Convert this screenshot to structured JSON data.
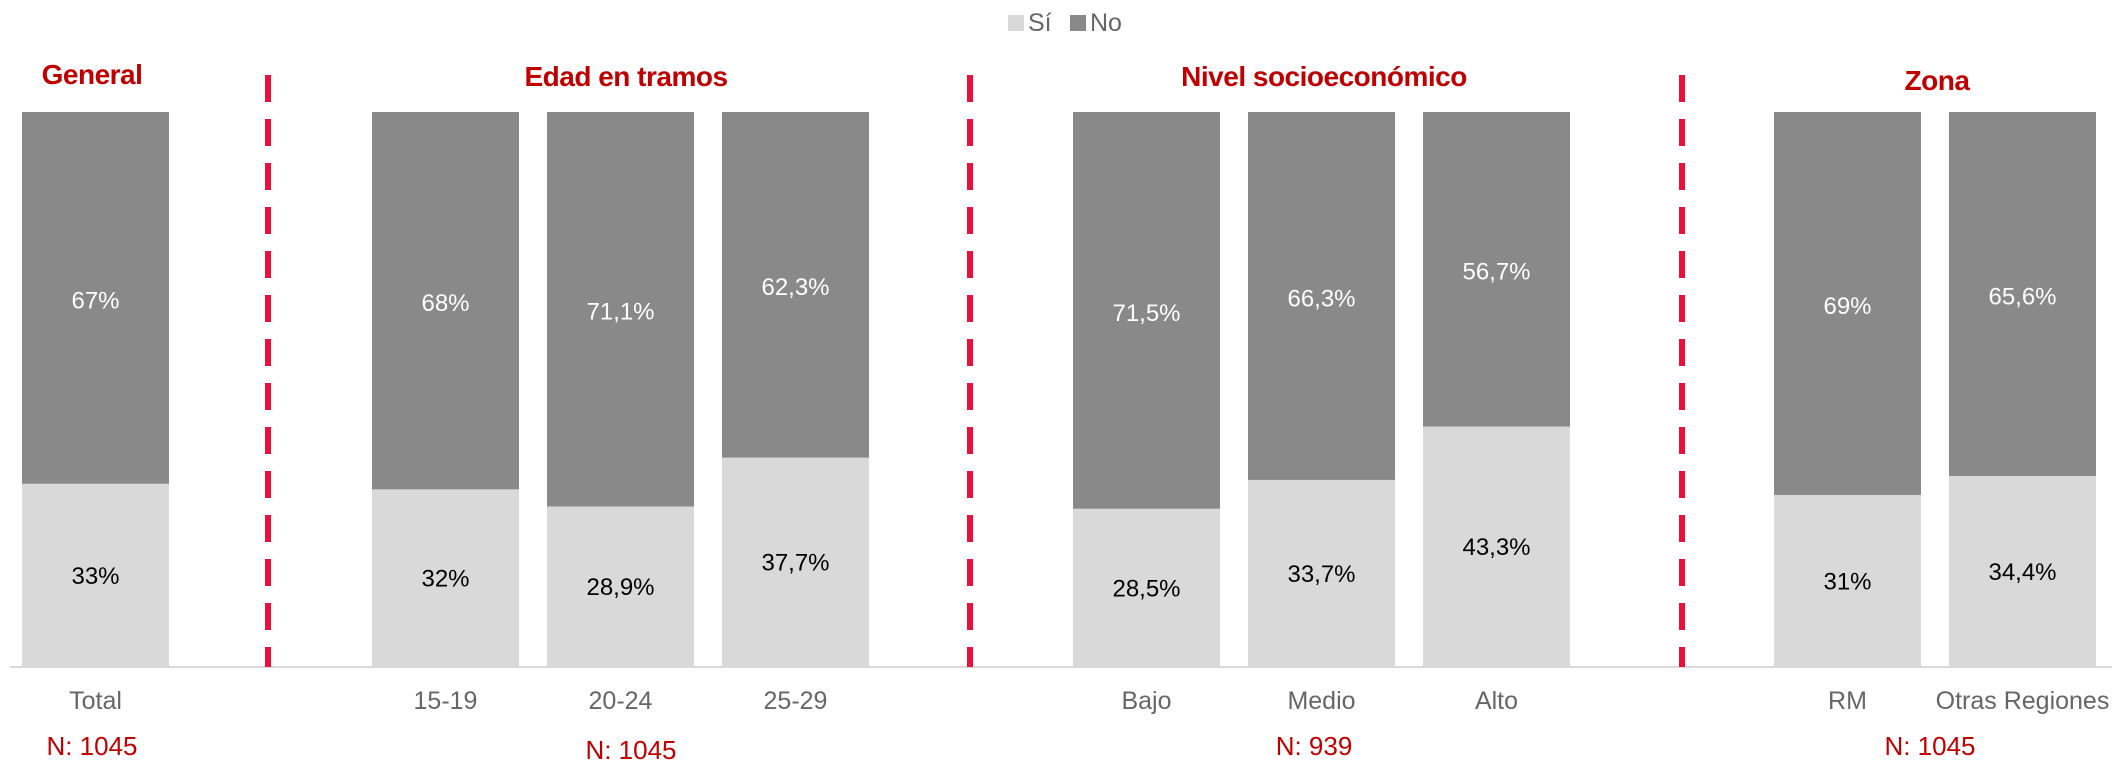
{
  "chart_data": {
    "type": "bar",
    "stacked": true,
    "percent": true,
    "title": "",
    "ylim": [
      0,
      100
    ],
    "legend": {
      "position": "top",
      "items": [
        {
          "name": "Sí",
          "color": "#d9d9d9"
        },
        {
          "name": "No",
          "color": "#898989"
        }
      ]
    },
    "colors": {
      "si": "#d9d9d9",
      "no": "#898989",
      "divider": "#e8103c",
      "title": "#c00000",
      "label_dark": "#000000",
      "label_light": "#ffffff"
    },
    "groups": [
      {
        "title": "General",
        "n_label": "N: 1045",
        "categories": [
          "Total"
        ],
        "si": [
          33
        ],
        "no": [
          67
        ],
        "si_labels": [
          "33%"
        ],
        "no_labels": [
          "67%"
        ]
      },
      {
        "title": "Edad en tramos",
        "n_label": "N: 1045",
        "categories": [
          "15-19",
          "20-24",
          "25-29"
        ],
        "si": [
          32,
          28.9,
          37.7
        ],
        "no": [
          68,
          71.1,
          62.3
        ],
        "si_labels": [
          "32%",
          "28,9%",
          "37,7%"
        ],
        "no_labels": [
          "68%",
          "71,1%",
          "62,3%"
        ]
      },
      {
        "title": "Nivel socioeconómico",
        "n_label": "N: 939",
        "categories": [
          "Bajo",
          "Medio",
          "Alto"
        ],
        "si": [
          28.5,
          33.7,
          43.3
        ],
        "no": [
          71.5,
          66.3,
          56.7
        ],
        "si_labels": [
          "28,5%",
          "33,7%",
          "43,3%"
        ],
        "no_labels": [
          "71,5%",
          "66,3%",
          "56,7%"
        ]
      },
      {
        "title": "Zona",
        "n_label": "N: 1045",
        "categories": [
          "RM",
          "Otras Regiones"
        ],
        "si": [
          31,
          34.4
        ],
        "no": [
          69,
          65.6
        ],
        "si_labels": [
          "31%",
          "34,4%"
        ],
        "no_labels": [
          "69%",
          "65,6%"
        ]
      }
    ]
  }
}
